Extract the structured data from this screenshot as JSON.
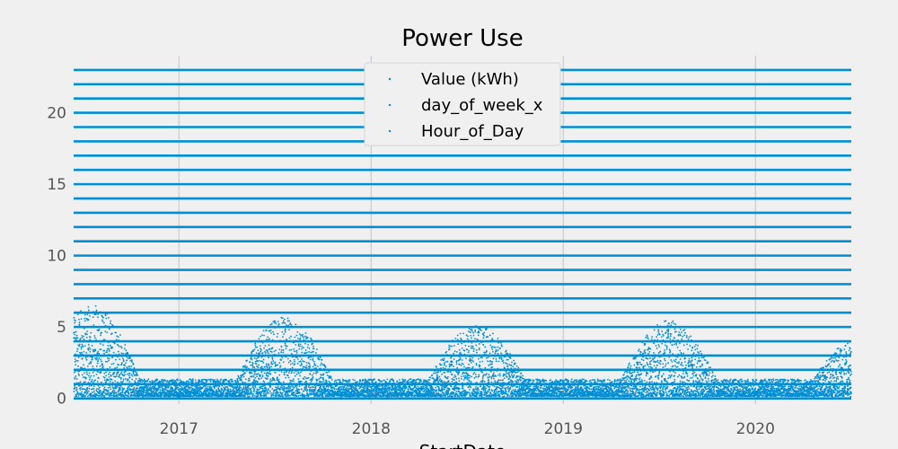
{
  "chart_data": {
    "type": "scatter",
    "title": "Power Use",
    "xlabel": "StartDate",
    "ylabel": "",
    "xlim": [
      "2016-06-15",
      "2020-07-01"
    ],
    "ylim": [
      -0.4,
      24.0
    ],
    "x_ticks": [
      "2017",
      "2018",
      "2019",
      "2020"
    ],
    "y_ticks": [
      0,
      5,
      10,
      15,
      20
    ],
    "grid": true,
    "legend_position": "top-center",
    "color": "#008fd5",
    "series": [
      {
        "name": "Value (kWh)",
        "description_values": {
          "summer_peak_max_kWh": [
            6.4,
            5.6,
            5.0,
            5.3,
            4.2
          ],
          "winter_typical_max_kWh": 1.5,
          "min_kWh": 0.1
        }
      },
      {
        "name": "day_of_week_x",
        "levels": [
          0,
          1,
          2,
          3,
          4,
          5,
          6
        ]
      },
      {
        "name": "Hour_of_Day",
        "levels": [
          0,
          1,
          2,
          3,
          4,
          5,
          6,
          7,
          8,
          9,
          10,
          11,
          12,
          13,
          14,
          15,
          16,
          17,
          18,
          19,
          20,
          21,
          22,
          23
        ]
      }
    ]
  }
}
